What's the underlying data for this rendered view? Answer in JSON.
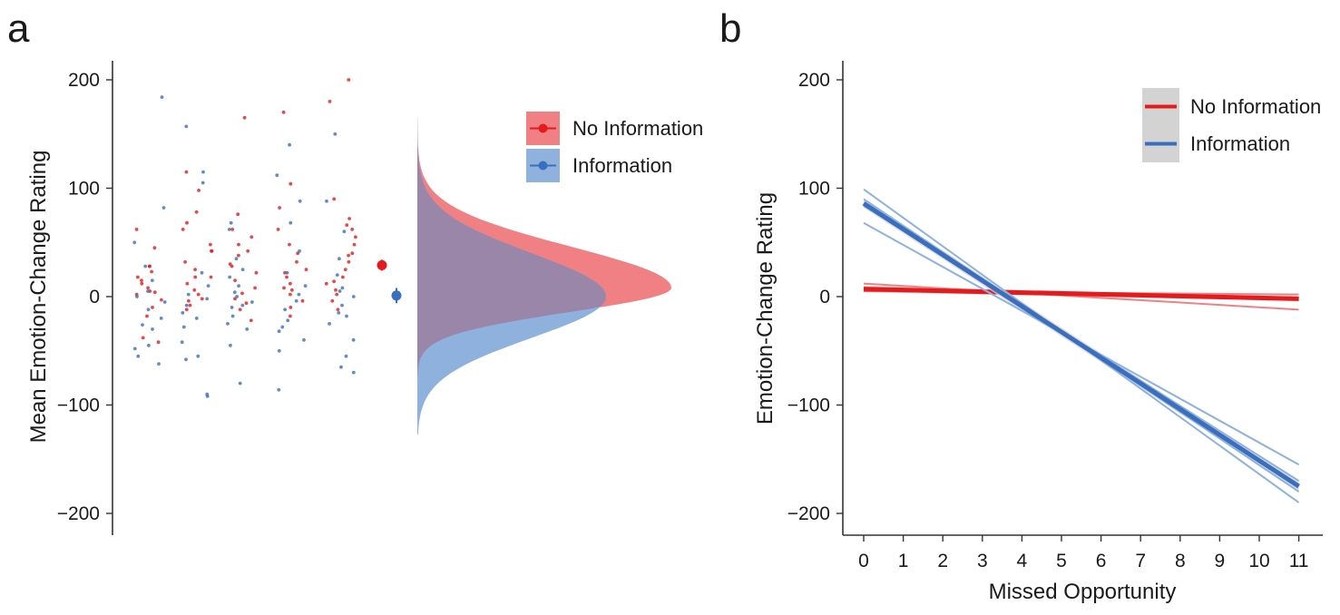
{
  "colors": {
    "red": "#e41a1c",
    "blue": "#3a6fbf",
    "red_light": "#f08083",
    "blue_light": "#8fb1de",
    "purple": "#9a86a9",
    "ci_grey": "#d3d3d3"
  },
  "panel_a": {
    "letter": "a",
    "ylabel": "Mean Emotion-Change Rating",
    "yticks": [
      "200",
      "100",
      "0",
      "−100",
      "−200"
    ],
    "legend": [
      "No Information",
      "Information"
    ]
  },
  "panel_b": {
    "letter": "b",
    "ylabel": "Emotion-Change Rating",
    "xlabel": "Missed Opportunity",
    "yticks": [
      "200",
      "100",
      "0",
      "−100",
      "−200"
    ],
    "xticks": [
      "0",
      "1",
      "2",
      "3",
      "4",
      "5",
      "6",
      "7",
      "8",
      "9",
      "10",
      "11"
    ],
    "legend": [
      "No Information",
      "Information"
    ]
  },
  "chart_data": [
    {
      "type": "scatter",
      "panel": "a",
      "ylabel": "Mean Emotion-Change Rating",
      "ylim": [
        -220,
        220
      ],
      "groups": 5,
      "series": [
        {
          "name": "No Information",
          "mean": 29,
          "ci": [
            24,
            34
          ],
          "points": [
            [
              1,
              28
            ],
            [
              1,
              23
            ],
            [
              1,
              18
            ],
            [
              1,
              12
            ],
            [
              1,
              8
            ],
            [
              1,
              5
            ],
            [
              1,
              2
            ],
            [
              1,
              -3
            ],
            [
              1,
              -10
            ],
            [
              1,
              -18
            ],
            [
              1,
              -38
            ],
            [
              1,
              -42
            ],
            [
              1,
              45
            ],
            [
              1,
              62
            ],
            [
              1,
              28
            ],
            [
              1,
              15
            ],
            [
              1,
              4
            ],
            [
              2,
              115
            ],
            [
              2,
              98
            ],
            [
              2,
              78
            ],
            [
              2,
              68
            ],
            [
              2,
              62
            ],
            [
              2,
              48
            ],
            [
              2,
              42
            ],
            [
              2,
              32
            ],
            [
              2,
              25
            ],
            [
              2,
              18
            ],
            [
              2,
              12
            ],
            [
              2,
              6
            ],
            [
              2,
              2
            ],
            [
              2,
              -2
            ],
            [
              2,
              -8
            ],
            [
              2,
              -12
            ],
            [
              2,
              42
            ],
            [
              2,
              18
            ],
            [
              2,
              -4
            ],
            [
              3,
              165
            ],
            [
              3,
              76
            ],
            [
              3,
              62
            ],
            [
              3,
              55
            ],
            [
              3,
              48
            ],
            [
              3,
              38
            ],
            [
              3,
              30
            ],
            [
              3,
              22
            ],
            [
              3,
              15
            ],
            [
              3,
              8
            ],
            [
              3,
              3
            ],
            [
              3,
              -2
            ],
            [
              3,
              -6
            ],
            [
              3,
              -12
            ],
            [
              3,
              -22
            ],
            [
              3,
              42
            ],
            [
              3,
              28
            ],
            [
              4,
              170
            ],
            [
              4,
              104
            ],
            [
              4,
              82
            ],
            [
              4,
              62
            ],
            [
              4,
              48
            ],
            [
              4,
              40
            ],
            [
              4,
              32
            ],
            [
              4,
              25
            ],
            [
              4,
              18
            ],
            [
              4,
              12
            ],
            [
              4,
              6
            ],
            [
              4,
              2
            ],
            [
              4,
              -4
            ],
            [
              4,
              -10
            ],
            [
              4,
              -18
            ],
            [
              4,
              22
            ],
            [
              4,
              8
            ],
            [
              5,
              200
            ],
            [
              5,
              180
            ],
            [
              5,
              90
            ],
            [
              5,
              72
            ],
            [
              5,
              62
            ],
            [
              5,
              55
            ],
            [
              5,
              48
            ],
            [
              5,
              40
            ],
            [
              5,
              32
            ],
            [
              5,
              25
            ],
            [
              5,
              18
            ],
            [
              5,
              12
            ],
            [
              5,
              6
            ],
            [
              5,
              2
            ],
            [
              5,
              -4
            ],
            [
              5,
              -12
            ],
            [
              5,
              66
            ],
            [
              5,
              38
            ],
            [
              5,
              14
            ]
          ]
        },
        {
          "name": "Information",
          "mean": 1,
          "ci": [
            -6,
            8
          ],
          "points": [
            [
              1,
              82
            ],
            [
              1,
              50
            ],
            [
              1,
              28
            ],
            [
              1,
              15
            ],
            [
              1,
              5
            ],
            [
              1,
              0
            ],
            [
              1,
              -5
            ],
            [
              1,
              -12
            ],
            [
              1,
              -20
            ],
            [
              1,
              -30
            ],
            [
              1,
              -45
            ],
            [
              1,
              -55
            ],
            [
              1,
              -62
            ],
            [
              1,
              184
            ],
            [
              1,
              -26
            ],
            [
              1,
              -48
            ],
            [
              2,
              157
            ],
            [
              2,
              115
            ],
            [
              2,
              105
            ],
            [
              2,
              22
            ],
            [
              2,
              10
            ],
            [
              2,
              2
            ],
            [
              2,
              -2
            ],
            [
              2,
              -8
            ],
            [
              2,
              -15
            ],
            [
              2,
              -28
            ],
            [
              2,
              -42
            ],
            [
              2,
              -55
            ],
            [
              2,
              -90
            ],
            [
              2,
              -92
            ],
            [
              2,
              -58
            ],
            [
              2,
              -20
            ],
            [
              3,
              62
            ],
            [
              3,
              35
            ],
            [
              3,
              25
            ],
            [
              3,
              18
            ],
            [
              3,
              10
            ],
            [
              3,
              4
            ],
            [
              3,
              0
            ],
            [
              3,
              -5
            ],
            [
              3,
              -10
            ],
            [
              3,
              -18
            ],
            [
              3,
              -25
            ],
            [
              3,
              -30
            ],
            [
              3,
              -45
            ],
            [
              3,
              -80
            ],
            [
              3,
              68
            ],
            [
              3,
              -8
            ],
            [
              4,
              140
            ],
            [
              4,
              112
            ],
            [
              4,
              88
            ],
            [
              4,
              68
            ],
            [
              4,
              42
            ],
            [
              4,
              22
            ],
            [
              4,
              10
            ],
            [
              4,
              2
            ],
            [
              4,
              -4
            ],
            [
              4,
              -12
            ],
            [
              4,
              -22
            ],
            [
              4,
              -32
            ],
            [
              4,
              -40
            ],
            [
              4,
              -50
            ],
            [
              4,
              -86
            ],
            [
              4,
              -28
            ],
            [
              5,
              150
            ],
            [
              5,
              88
            ],
            [
              5,
              60
            ],
            [
              5,
              35
            ],
            [
              5,
              20
            ],
            [
              5,
              8
            ],
            [
              5,
              0
            ],
            [
              5,
              -8
            ],
            [
              5,
              -15
            ],
            [
              5,
              -25
            ],
            [
              5,
              -40
            ],
            [
              5,
              -55
            ],
            [
              5,
              -65
            ],
            [
              5,
              -70
            ],
            [
              5,
              -18
            ],
            [
              5,
              5
            ]
          ]
        }
      ],
      "density": {
        "No Information": {
          "mode": 8,
          "range": [
            -75,
            235
          ]
        },
        "Information": {
          "mode": 0,
          "range": [
            -127,
            235
          ]
        }
      },
      "legend_position": "top-right"
    },
    {
      "type": "line",
      "panel": "b",
      "xlabel": "Missed Opportunity",
      "ylabel": "Emotion-Change Rating",
      "xlim": [
        -0.4,
        11.5
      ],
      "ylim": [
        -220,
        220
      ],
      "x": [
        0,
        11
      ],
      "series": [
        {
          "name": "No Information",
          "fit": [
            7,
            -2
          ],
          "ci_lower": [
            4,
            -4
          ],
          "ci_upper": [
            10,
            0
          ],
          "replicates": [
            [
              12,
              -12
            ],
            [
              5,
              2
            ],
            [
              8,
              -1
            ]
          ]
        },
        {
          "name": "Information",
          "fit": [
            86,
            -175
          ],
          "ci_lower": [
            82,
            -179
          ],
          "ci_upper": [
            90,
            -171
          ],
          "replicates": [
            [
              99,
              -190
            ],
            [
              68,
              -155
            ],
            [
              90,
              -180
            ],
            [
              84,
              -170
            ]
          ]
        }
      ],
      "legend_position": "top-right"
    }
  ]
}
